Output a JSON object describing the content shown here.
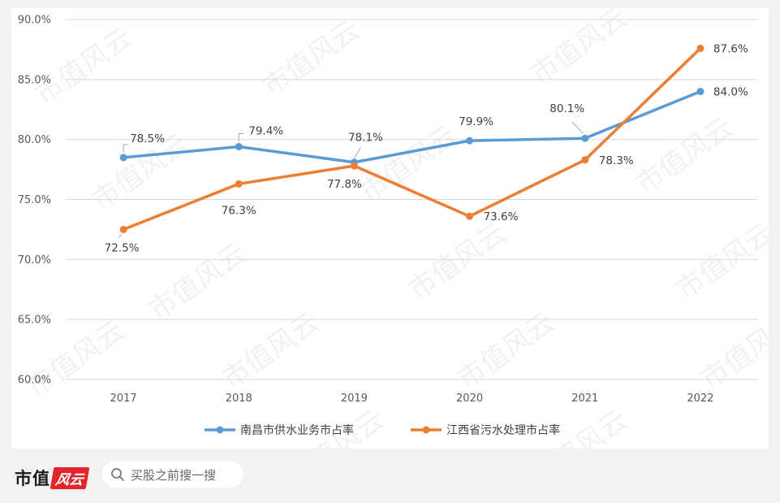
{
  "chart_data": {
    "type": "line",
    "title": "",
    "xlabel": "",
    "ylabel": "",
    "categories": [
      "2017",
      "2018",
      "2019",
      "2020",
      "2021",
      "2022"
    ],
    "ylim": [
      60,
      90
    ],
    "yticks": [
      "60.0%",
      "65.0%",
      "70.0%",
      "75.0%",
      "80.0%",
      "85.0%",
      "90.0%"
    ],
    "grid": true,
    "legend_position": "bottom",
    "series": [
      {
        "name": "南昌市供水业务市占率",
        "color": "#5b9bd5",
        "values": [
          78.5,
          79.4,
          78.1,
          79.9,
          80.1,
          84.0
        ],
        "labels": [
          "78.5%",
          "79.4%",
          "78.1%",
          "79.9%",
          "80.1%",
          "84.0%"
        ]
      },
      {
        "name": "江西省污水处理市占率",
        "color": "#ed7d31",
        "values": [
          72.5,
          76.3,
          77.8,
          73.6,
          78.3,
          87.6
        ],
        "labels": [
          "72.5%",
          "76.3%",
          "77.8%",
          "73.6%",
          "78.3%",
          "87.6%"
        ]
      }
    ]
  },
  "watermark": "市值风云",
  "footer": {
    "brand_name": "市值",
    "brand_mark": "风云",
    "search_icon": "search-icon",
    "search_text": "买股之前搜一搜"
  }
}
